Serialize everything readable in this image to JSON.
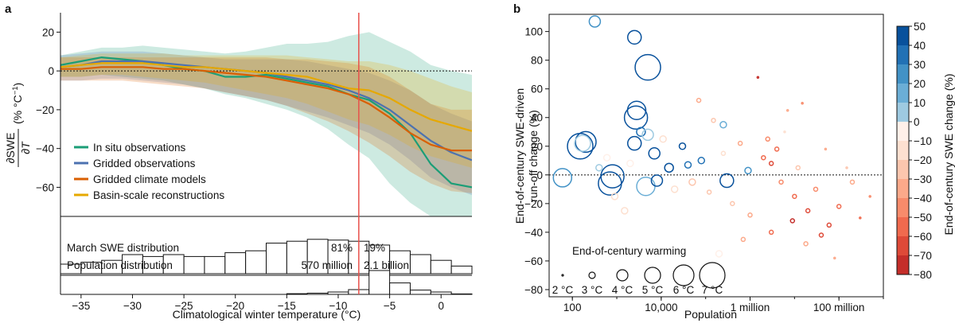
{
  "panel_a": {
    "letter": "a",
    "ylabel_num": "∂SWE",
    "ylabel_den": "∂T",
    "ylabel_unit": "(% °C",
    "ylabel_sup": "−1",
    "ylabel_close": ")",
    "xlabel": "Climatological winter temperature (°C)",
    "threshold_label_left": "81%",
    "threshold_label_right": "19%",
    "march_label": "March SWE distribution",
    "pop_label": "Population distribution",
    "pop_left": "570 million",
    "pop_right": "2.1 billion"
  },
  "panel_b": {
    "letter": "b",
    "ylabel_line1": "End-of-century SWE-driven",
    "ylabel_line2": "run-off change (%)",
    "xlabel": "Population",
    "colorbar_label": "End-of-century SWE change (%)",
    "warming_title": "End-of-century warming",
    "warming_labels": [
      "2 °C",
      "3 °C",
      "4 °C",
      "5 °C",
      "6 °C",
      "7 °C"
    ]
  },
  "chart_data": [
    {
      "type": "line",
      "title": "",
      "xlabel": "Climatological winter temperature (°C)",
      "ylabel": "∂SWE/∂T (% °C−1)",
      "xlim": [
        -37,
        3
      ],
      "ylim": [
        -75,
        30
      ],
      "x_ticks": [
        -35,
        -30,
        -25,
        -20,
        -15,
        -10,
        -5,
        0
      ],
      "y_ticks": [
        20,
        0,
        -20,
        -40,
        -60
      ],
      "threshold_x": -8,
      "legend_position": "lower-left",
      "series": [
        {
          "name": "In situ observations",
          "color": "#1b9e77",
          "x": [
            -37,
            -35,
            -33,
            -31,
            -29,
            -27,
            -25,
            -23,
            -21,
            -19,
            -17,
            -15,
            -13,
            -11,
            -9,
            -7,
            -5,
            -3,
            -1,
            1,
            3
          ],
          "y": [
            3,
            5,
            7,
            6,
            5,
            3,
            1,
            0,
            -3,
            -3,
            -2,
            -4,
            -6,
            -8,
            -12,
            -15,
            -22,
            -32,
            -48,
            -58,
            -60
          ],
          "lower": [
            -3,
            -3,
            -2,
            -3,
            -4,
            -5,
            -7,
            -9,
            -12,
            -14,
            -17,
            -20,
            -24,
            -30,
            -38,
            -45,
            -58,
            -68,
            -75,
            -75,
            -75
          ],
          "upper": [
            8,
            10,
            12,
            12,
            13,
            12,
            11,
            10,
            9,
            10,
            12,
            14,
            14,
            15,
            18,
            20,
            15,
            10,
            3,
            0,
            -2
          ]
        },
        {
          "name": "Gridded observations",
          "color": "#4c72b0",
          "x": [
            -37,
            -35,
            -33,
            -31,
            -29,
            -27,
            -25,
            -23,
            -21,
            -19,
            -17,
            -15,
            -13,
            -11,
            -9,
            -7,
            -5,
            -3,
            -1,
            1,
            3
          ],
          "y": [
            2,
            3,
            5,
            5,
            5,
            4,
            3,
            2,
            1,
            0,
            -1,
            -3,
            -5,
            -7,
            -10,
            -14,
            -20,
            -28,
            -36,
            -42,
            -46
          ],
          "lower": [
            -5,
            -5,
            -4,
            -4,
            -5,
            -6,
            -7,
            -9,
            -11,
            -13,
            -15,
            -18,
            -21,
            -24,
            -28,
            -32,
            -38,
            -46,
            -55,
            -60,
            -64
          ],
          "upper": [
            8,
            9,
            10,
            10,
            10,
            9,
            8,
            7,
            6,
            6,
            6,
            6,
            5,
            3,
            1,
            -1,
            -5,
            -10,
            -17,
            -22,
            -26
          ]
        },
        {
          "name": "Gridded climate models",
          "color": "#d95f02",
          "x": [
            -37,
            -35,
            -33,
            -31,
            -29,
            -27,
            -25,
            -23,
            -21,
            -19,
            -17,
            -15,
            -13,
            -11,
            -9,
            -7,
            -5,
            -3,
            -1,
            1,
            3
          ],
          "y": [
            1,
            1,
            2,
            2,
            2,
            1,
            1,
            0,
            -1,
            -2,
            -3,
            -5,
            -7,
            -9,
            -12,
            -17,
            -24,
            -32,
            -38,
            -41,
            -41
          ],
          "lower": [
            -5,
            -5,
            -5,
            -5,
            -6,
            -7,
            -8,
            -9,
            -11,
            -13,
            -15,
            -18,
            -22,
            -26,
            -31,
            -37,
            -44,
            -52,
            -58,
            -62,
            -63
          ],
          "upper": [
            7,
            7,
            7,
            7,
            7,
            7,
            7,
            7,
            7,
            7,
            7,
            6,
            6,
            5,
            4,
            2,
            -3,
            -10,
            -17,
            -20,
            -20
          ]
        },
        {
          "name": "Basin-scale reconstructions",
          "color": "#e6a800",
          "x": [
            -37,
            -35,
            -33,
            -31,
            -29,
            -27,
            -25,
            -23,
            -21,
            -19,
            -17,
            -15,
            -13,
            -11,
            -9,
            -7,
            -5,
            -3,
            -1,
            1,
            3
          ],
          "y": [
            2,
            3,
            4,
            4,
            4,
            3,
            2,
            2,
            1,
            0,
            -1,
            -2,
            -3,
            -6,
            -9,
            -10,
            -14,
            -20,
            -25,
            -28,
            -31
          ],
          "lower": [
            -3,
            -3,
            -2,
            -2,
            -3,
            -4,
            -5,
            -6,
            -8,
            -10,
            -12,
            -14,
            -17,
            -21,
            -25,
            -28,
            -33,
            -39,
            -44,
            -47,
            -50
          ],
          "upper": [
            7,
            8,
            9,
            9,
            9,
            9,
            8,
            8,
            8,
            8,
            8,
            8,
            7,
            6,
            5,
            5,
            3,
            0,
            -4,
            -8,
            -11
          ]
        }
      ]
    },
    {
      "type": "bar",
      "title": "March SWE distribution",
      "bin_edges": [
        -37,
        -35,
        -33,
        -31,
        -29,
        -27,
        -25,
        -23,
        -21,
        -19,
        -17,
        -15,
        -13,
        -11,
        -9,
        -7,
        -5,
        -3,
        -1,
        1,
        3
      ],
      "values": [
        0.25,
        0.3,
        0.35,
        0.5,
        0.45,
        0.5,
        0.45,
        0.45,
        0.55,
        0.6,
        0.8,
        0.85,
        0.9,
        0.88,
        0.85,
        0.75,
        0.6,
        0.5,
        0.35,
        0.2
      ],
      "split_labels": [
        "81%",
        "19%"
      ]
    },
    {
      "type": "bar",
      "title": "Population distribution",
      "bin_edges": [
        -37,
        -35,
        -33,
        -31,
        -29,
        -27,
        -25,
        -23,
        -21,
        -19,
        -17,
        -15,
        -13,
        -11,
        -9,
        -7,
        -5,
        -3,
        -1,
        1,
        3
      ],
      "values": [
        0,
        0,
        0,
        0,
        0,
        0,
        0,
        0,
        0,
        0,
        0,
        0.03,
        0.05,
        0.1,
        0.2,
        1.0,
        0.48,
        0.18,
        0.1,
        0.02
      ],
      "split_labels": [
        "570 million",
        "2.1 billion"
      ]
    },
    {
      "type": "scatter",
      "title": "",
      "xlabel": "Population",
      "ylabel": "End-of-century SWE-driven run-off change (%)",
      "x_scale": "log10",
      "xlim": [
        30,
        1000000000
      ],
      "ylim": [
        -85,
        112
      ],
      "x_ticks": [
        100,
        10000,
        1000000,
        100000000
      ],
      "x_tick_labels": [
        "100",
        "10,000",
        "1 million",
        "100 million"
      ],
      "y_ticks": [
        100,
        80,
        60,
        40,
        20,
        0,
        -20,
        -40,
        -60,
        -80
      ],
      "size_legend_warming_c": [
        2,
        3,
        4,
        5,
        6,
        7
      ],
      "colorbar": {
        "min": -80,
        "max": 50,
        "step": 10,
        "ticks": [
          50,
          40,
          30,
          20,
          10,
          0,
          -10,
          -20,
          -30,
          -40,
          -50,
          -60,
          -70,
          -80
        ]
      },
      "points": [
        {
          "x": 320,
          "y": 107,
          "w": 4,
          "c": 20
        },
        {
          "x": 2500,
          "y": 96,
          "w": 4.5,
          "c": 45
        },
        {
          "x": 5000,
          "y": 75,
          "w": 7,
          "c": 45
        },
        {
          "x": 2800,
          "y": 45,
          "w": 5.5,
          "c": 45
        },
        {
          "x": 2700,
          "y": 40,
          "w": 6.5,
          "c": 45
        },
        {
          "x": 2500,
          "y": 22,
          "w": 4.5,
          "c": 45
        },
        {
          "x": 3500,
          "y": 30,
          "w": 3.5,
          "c": 35
        },
        {
          "x": 5000,
          "y": 28,
          "w": 4,
          "c": 5
        },
        {
          "x": 150,
          "y": 20,
          "w": 7,
          "c": 45
        },
        {
          "x": 200,
          "y": 23,
          "w": 6,
          "c": 45
        },
        {
          "x": 170,
          "y": 22,
          "w": 5,
          "c": 5
        },
        {
          "x": 60,
          "y": -2,
          "w": 5.5,
          "c": 25
        },
        {
          "x": 800,
          "y": -1,
          "w": 6.5,
          "c": 45
        },
        {
          "x": 700,
          "y": -6,
          "w": 6.5,
          "c": 45
        },
        {
          "x": 4500,
          "y": -8,
          "w": 5.5,
          "c": 10
        },
        {
          "x": 7000,
          "y": 15,
          "w": 4,
          "c": 45
        },
        {
          "x": 8000,
          "y": -4,
          "w": 4,
          "c": 45
        },
        {
          "x": 15000,
          "y": 5,
          "w": 3.5,
          "c": 45
        },
        {
          "x": 30000,
          "y": 20,
          "w": 3,
          "c": 40
        },
        {
          "x": 40000,
          "y": 7,
          "w": 3,
          "c": 30
        },
        {
          "x": 80000,
          "y": 10,
          "w": 3,
          "c": 35
        },
        {
          "x": 250000,
          "y": 35,
          "w": 3,
          "c": 15
        },
        {
          "x": 300000,
          "y": -4,
          "w": 4.5,
          "c": 45
        },
        {
          "x": 900000,
          "y": 3,
          "w": 3,
          "c": 25
        },
        {
          "x": 70000,
          "y": 52,
          "w": 2.5,
          "c": -35
        },
        {
          "x": 150000,
          "y": 38,
          "w": 2.5,
          "c": -20
        },
        {
          "x": 1500000,
          "y": 68,
          "w": 2,
          "c": -70
        },
        {
          "x": 600000,
          "y": 22,
          "w": 2.5,
          "c": -30
        },
        {
          "x": 2000000,
          "y": 12,
          "w": 2.5,
          "c": -50
        },
        {
          "x": 3000000,
          "y": 8,
          "w": 2.5,
          "c": -60
        },
        {
          "x": 5000000,
          "y": -5,
          "w": 2.5,
          "c": -45
        },
        {
          "x": 10000000,
          "y": -15,
          "w": 2.5,
          "c": -55
        },
        {
          "x": 20000000,
          "y": -25,
          "w": 2.5,
          "c": -60
        },
        {
          "x": 30000000,
          "y": -10,
          "w": 2.5,
          "c": -40
        },
        {
          "x": 60000000,
          "y": -35,
          "w": 2.5,
          "c": -65
        },
        {
          "x": 100000000,
          "y": -22,
          "w": 2.5,
          "c": -50
        },
        {
          "x": 80000000,
          "y": -58,
          "w": 2,
          "c": -30
        },
        {
          "x": 200000000,
          "y": -5,
          "w": 2.5,
          "c": -35
        },
        {
          "x": 500000000,
          "y": -15,
          "w": 2,
          "c": -45
        },
        {
          "x": 15000000,
          "y": 50,
          "w": 2,
          "c": -40
        },
        {
          "x": 7000000,
          "y": 45,
          "w": 2,
          "c": -30
        },
        {
          "x": 1000000,
          "y": -28,
          "w": 2.5,
          "c": -35
        },
        {
          "x": 400000,
          "y": -20,
          "w": 2.5,
          "c": -20
        },
        {
          "x": 3000000,
          "y": -40,
          "w": 2.5,
          "c": -55
        },
        {
          "x": 40000000,
          "y": -42,
          "w": 2.5,
          "c": -60
        },
        {
          "x": 12000000,
          "y": 5,
          "w": 2.5,
          "c": -25
        },
        {
          "x": 6000000,
          "y": 30,
          "w": 2,
          "c": -15
        },
        {
          "x": 1500,
          "y": -25,
          "w": 3,
          "c": -15
        },
        {
          "x": 900,
          "y": -15,
          "w": 3,
          "c": -10
        },
        {
          "x": 600,
          "y": 12,
          "w": 3,
          "c": -5
        },
        {
          "x": 20000,
          "y": -10,
          "w": 3,
          "c": -10
        },
        {
          "x": 50000,
          "y": -5,
          "w": 3,
          "c": -20
        },
        {
          "x": 120000,
          "y": -12,
          "w": 2.5,
          "c": -25
        },
        {
          "x": 250000,
          "y": 15,
          "w": 2.5,
          "c": -15
        },
        {
          "x": 2500000,
          "y": 25,
          "w": 2.5,
          "c": -40
        },
        {
          "x": 50000000,
          "y": 18,
          "w": 2,
          "c": -30
        },
        {
          "x": 150000000,
          "y": 5,
          "w": 2,
          "c": -20
        },
        {
          "x": 300000000,
          "y": -30,
          "w": 2,
          "c": -50
        },
        {
          "x": 700000,
          "y": -45,
          "w": 2.5,
          "c": -30
        },
        {
          "x": 9000000,
          "y": -32,
          "w": 2.5,
          "c": -70
        },
        {
          "x": 4000000,
          "y": 18,
          "w": 2.5,
          "c": -55
        },
        {
          "x": 18000000,
          "y": -48,
          "w": 2.5,
          "c": -35
        },
        {
          "x": 2000,
          "y": 8,
          "w": 3,
          "c": -5
        },
        {
          "x": 11000,
          "y": 25,
          "w": 3,
          "c": -10
        },
        {
          "x": 400,
          "y": 5,
          "w": 3,
          "c": 0
        },
        {
          "x": 200000,
          "y": -55,
          "w": 3,
          "c": -5
        }
      ]
    }
  ]
}
